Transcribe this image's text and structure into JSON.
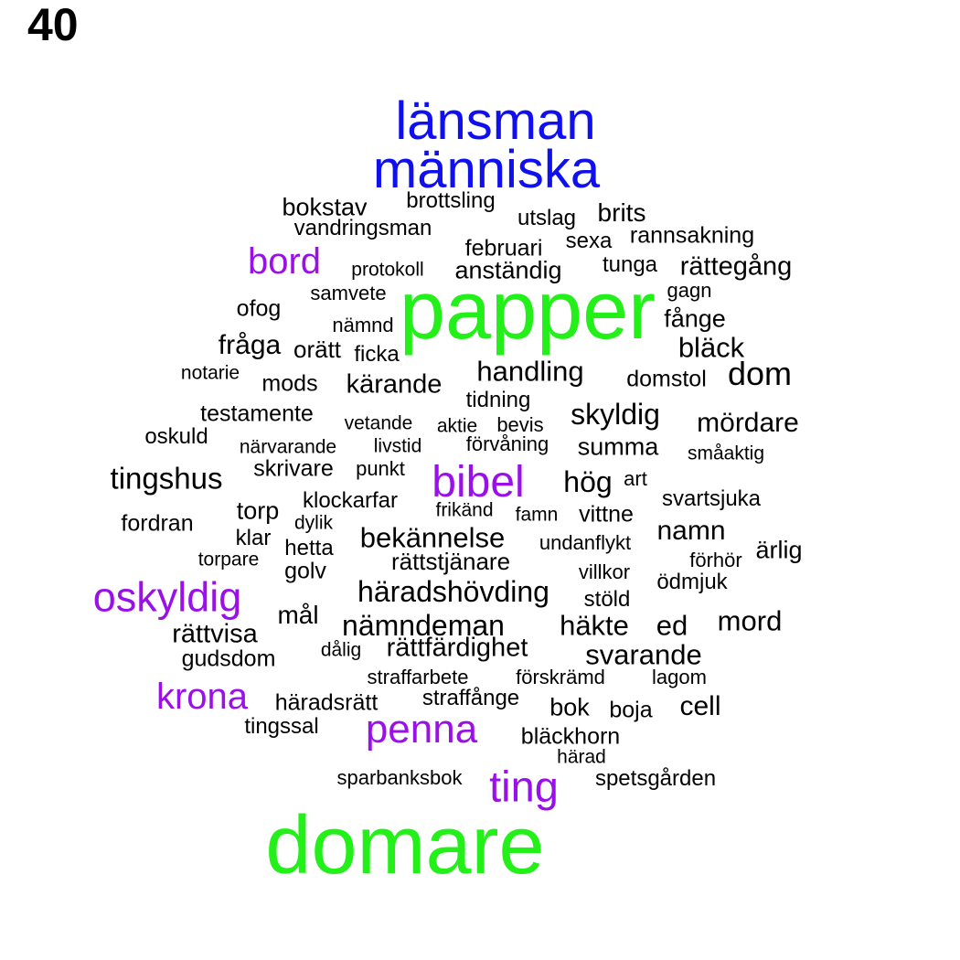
{
  "panel_number": "40",
  "colors": {
    "black": "#000000",
    "blue": "#1010ee",
    "purple": "#9a10e8",
    "green": "#22f018"
  },
  "words": [
    {
      "text": "länsman",
      "color": "blue"
    },
    {
      "text": "människa",
      "color": "blue"
    },
    {
      "text": "bokstav",
      "color": "black"
    },
    {
      "text": "brottsling",
      "color": "black"
    },
    {
      "text": "utslag",
      "color": "black"
    },
    {
      "text": "brits",
      "color": "black"
    },
    {
      "text": "vandringsman",
      "color": "black"
    },
    {
      "text": "sexa",
      "color": "black"
    },
    {
      "text": "rannsakning",
      "color": "black"
    },
    {
      "text": "februari",
      "color": "black"
    },
    {
      "text": "bord",
      "color": "purple"
    },
    {
      "text": "tunga",
      "color": "black"
    },
    {
      "text": "rättegång",
      "color": "black"
    },
    {
      "text": "protokoll",
      "color": "black"
    },
    {
      "text": "anständig",
      "color": "black"
    },
    {
      "text": "gagn",
      "color": "black"
    },
    {
      "text": "samvete",
      "color": "black"
    },
    {
      "text": "papper",
      "color": "green"
    },
    {
      "text": "ofog",
      "color": "black"
    },
    {
      "text": "fånge",
      "color": "black"
    },
    {
      "text": "nämnd",
      "color": "black"
    },
    {
      "text": "fråga",
      "color": "black"
    },
    {
      "text": "orätt",
      "color": "black"
    },
    {
      "text": "ficka",
      "color": "black"
    },
    {
      "text": "bläck",
      "color": "black"
    },
    {
      "text": "notarie",
      "color": "black"
    },
    {
      "text": "handling",
      "color": "black"
    },
    {
      "text": "dom",
      "color": "black"
    },
    {
      "text": "mods",
      "color": "black"
    },
    {
      "text": "kärande",
      "color": "black"
    },
    {
      "text": "domstol",
      "color": "black"
    },
    {
      "text": "tidning",
      "color": "black"
    },
    {
      "text": "testamente",
      "color": "black"
    },
    {
      "text": "skyldig",
      "color": "black"
    },
    {
      "text": "mördare",
      "color": "black"
    },
    {
      "text": "vetande",
      "color": "black"
    },
    {
      "text": "aktie",
      "color": "black"
    },
    {
      "text": "bevis",
      "color": "black"
    },
    {
      "text": "oskuld",
      "color": "black"
    },
    {
      "text": "närvarande",
      "color": "black"
    },
    {
      "text": "livstid",
      "color": "black"
    },
    {
      "text": "förvåning",
      "color": "black"
    },
    {
      "text": "summa",
      "color": "black"
    },
    {
      "text": "småaktig",
      "color": "black"
    },
    {
      "text": "tingshus",
      "color": "black"
    },
    {
      "text": "skrivare",
      "color": "black"
    },
    {
      "text": "punkt",
      "color": "black"
    },
    {
      "text": "bibel",
      "color": "purple"
    },
    {
      "text": "hög",
      "color": "black"
    },
    {
      "text": "art",
      "color": "black"
    },
    {
      "text": "svartsjuka",
      "color": "black"
    },
    {
      "text": "torp",
      "color": "black"
    },
    {
      "text": "klockarfar",
      "color": "black"
    },
    {
      "text": "frikänd",
      "color": "black"
    },
    {
      "text": "famn",
      "color": "black"
    },
    {
      "text": "vittne",
      "color": "black"
    },
    {
      "text": "fordran",
      "color": "black"
    },
    {
      "text": "dylik",
      "color": "black"
    },
    {
      "text": "namn",
      "color": "black"
    },
    {
      "text": "klar",
      "color": "black"
    },
    {
      "text": "bekännelse",
      "color": "black"
    },
    {
      "text": "undanflykt",
      "color": "black"
    },
    {
      "text": "hetta",
      "color": "black"
    },
    {
      "text": "ärlig",
      "color": "black"
    },
    {
      "text": "torpare",
      "color": "black"
    },
    {
      "text": "rättstjänare",
      "color": "black"
    },
    {
      "text": "förhör",
      "color": "black"
    },
    {
      "text": "golv",
      "color": "black"
    },
    {
      "text": "villkor",
      "color": "black"
    },
    {
      "text": "ödmjuk",
      "color": "black"
    },
    {
      "text": "oskyldig",
      "color": "purple"
    },
    {
      "text": "häradshövding",
      "color": "black"
    },
    {
      "text": "stöld",
      "color": "black"
    },
    {
      "text": "mål",
      "color": "black"
    },
    {
      "text": "mord",
      "color": "black"
    },
    {
      "text": "nämndeman",
      "color": "black"
    },
    {
      "text": "häkte",
      "color": "black"
    },
    {
      "text": "ed",
      "color": "black"
    },
    {
      "text": "rättvisa",
      "color": "black"
    },
    {
      "text": "dålig",
      "color": "black"
    },
    {
      "text": "rättfärdighet",
      "color": "black"
    },
    {
      "text": "svarande",
      "color": "black"
    },
    {
      "text": "gudsdom",
      "color": "black"
    },
    {
      "text": "straffarbete",
      "color": "black"
    },
    {
      "text": "förskrämd",
      "color": "black"
    },
    {
      "text": "lagom",
      "color": "black"
    },
    {
      "text": "krona",
      "color": "purple"
    },
    {
      "text": "straffånge",
      "color": "black"
    },
    {
      "text": "häradsrätt",
      "color": "black"
    },
    {
      "text": "bok",
      "color": "black"
    },
    {
      "text": "boja",
      "color": "black"
    },
    {
      "text": "cell",
      "color": "black"
    },
    {
      "text": "tingssal",
      "color": "black"
    },
    {
      "text": "penna",
      "color": "purple"
    },
    {
      "text": "bläckhorn",
      "color": "black"
    },
    {
      "text": "härad",
      "color": "black"
    },
    {
      "text": "sparbanksbok",
      "color": "black"
    },
    {
      "text": "ting",
      "color": "purple"
    },
    {
      "text": "spetsgården",
      "color": "black"
    },
    {
      "text": "domare",
      "color": "green"
    }
  ]
}
